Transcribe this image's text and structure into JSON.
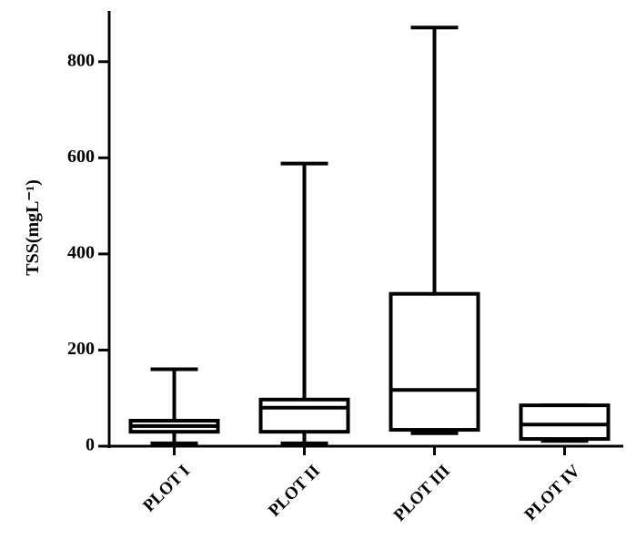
{
  "chart_data": {
    "type": "box",
    "y_label": "TSS(mgL⁻¹)",
    "categories": [
      "PLOT I",
      "PLOT II",
      "PLOT III",
      "PLOT IV"
    ],
    "min": [
      6,
      6,
      27,
      11
    ],
    "q1": [
      30,
      30,
      34,
      15
    ],
    "median": [
      42,
      80,
      117,
      45
    ],
    "q3": [
      53,
      97,
      317,
      85
    ],
    "max": [
      160,
      588,
      871,
      85
    ],
    "color": "#000000",
    "ylim": [
      0,
      900
    ],
    "yticks": [
      0,
      200,
      400,
      600,
      800
    ]
  }
}
